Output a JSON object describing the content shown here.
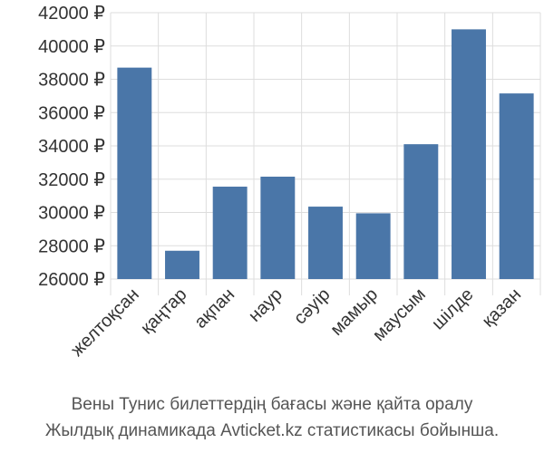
{
  "chart_data": {
    "type": "bar",
    "categories": [
      "желтоқсан",
      "қаңтар",
      "ақпан",
      "наур",
      "сәуір",
      "мамыр",
      "маусым",
      "шілде",
      "қазан"
    ],
    "series": [
      {
        "values": [
          38700,
          27700,
          31550,
          32150,
          30350,
          29950,
          34100,
          41000,
          37150
        ]
      }
    ],
    "ylim": [
      26000,
      42000
    ],
    "yticks": [
      26000,
      28000,
      30000,
      32000,
      34000,
      36000,
      38000,
      40000,
      42000
    ],
    "ytick_suffix": " ₽",
    "grid": true,
    "bar_color": "#4a76a8",
    "caption_lines": [
      "Вены Тунис билеттердің бағасы және қайта оралу",
      "Жылдық динамикада Avticket.kz статистикасы бойынша."
    ]
  }
}
